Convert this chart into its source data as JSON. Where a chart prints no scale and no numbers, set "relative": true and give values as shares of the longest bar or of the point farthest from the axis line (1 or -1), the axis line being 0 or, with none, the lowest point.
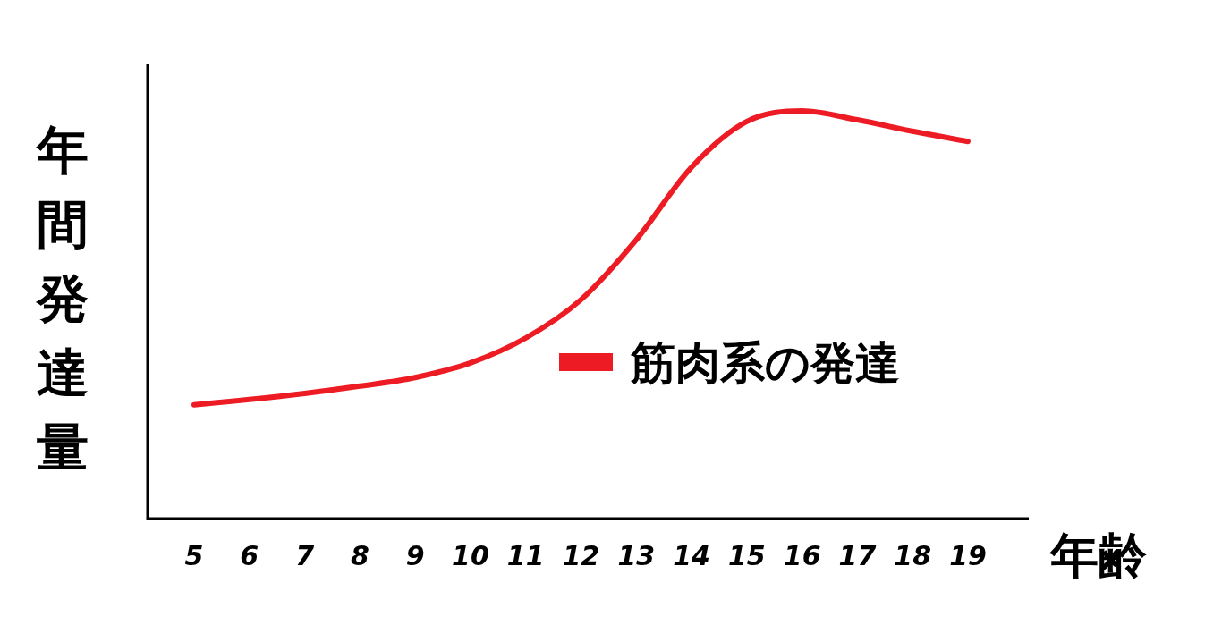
{
  "chart_data": {
    "type": "line",
    "relative": true,
    "xlabel": "年齢",
    "ylabel": "年間発達量",
    "categories": [
      "5",
      "6",
      "7",
      "8",
      "9",
      "10",
      "11",
      "12",
      "13",
      "14",
      "15",
      "16",
      "17",
      "18",
      "19"
    ],
    "series": [
      {
        "name": "筋肉系の発達",
        "color": "#ed1c24",
        "values": [
          0.279,
          0.292,
          0.307,
          0.325,
          0.346,
          0.382,
          0.443,
          0.537,
          0.684,
          0.862,
          0.974,
          1,
          0.978,
          0.95,
          0.925
        ]
      }
    ],
    "legend": "right",
    "grid": false,
    "marker": "none",
    "line_style": "solid"
  }
}
